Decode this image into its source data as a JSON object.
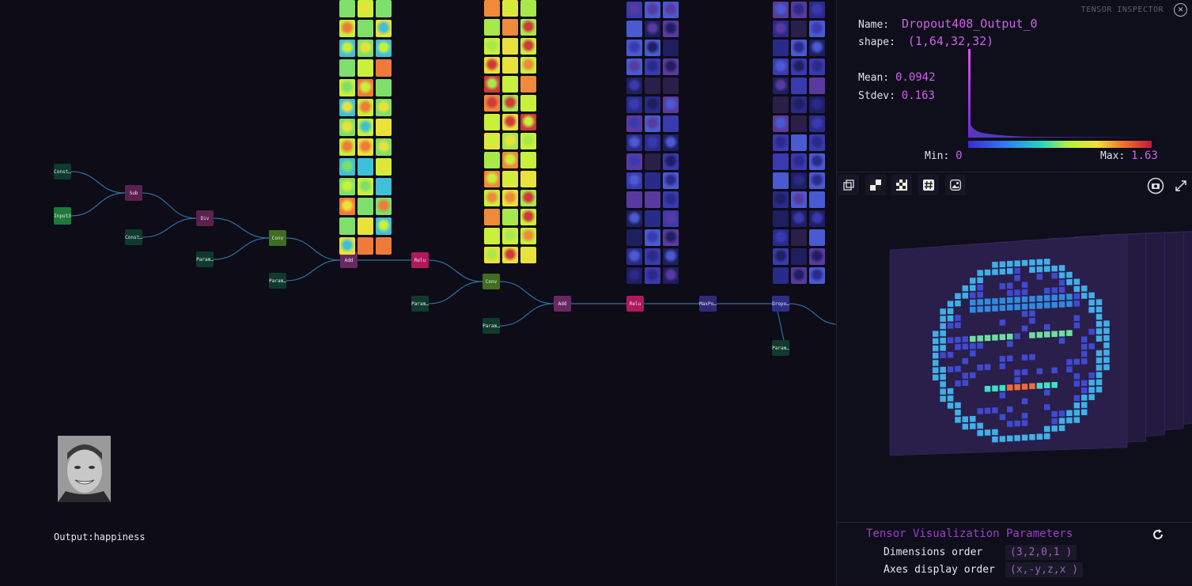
{
  "graph": {
    "nodes": [
      {
        "id": "c1",
        "label": "Constant",
        "kind": "const"
      },
      {
        "id": "in",
        "label": "Input3",
        "kind": "input"
      },
      {
        "id": "sub",
        "label": "Sub",
        "kind": "op"
      },
      {
        "id": "c2",
        "label": "Constant",
        "kind": "const"
      },
      {
        "id": "div",
        "label": "Div",
        "kind": "op"
      },
      {
        "id": "c3",
        "label": "Parameter",
        "kind": "const"
      },
      {
        "id": "conv1",
        "label": "Conv",
        "kind": "conv"
      },
      {
        "id": "c4",
        "label": "Parameter",
        "kind": "const"
      },
      {
        "id": "add1",
        "label": "Add",
        "kind": "add"
      },
      {
        "id": "relu1",
        "label": "Relu",
        "kind": "relu"
      },
      {
        "id": "c5",
        "label": "Parameter",
        "kind": "const"
      },
      {
        "id": "conv2",
        "label": "Conv",
        "kind": "conv"
      },
      {
        "id": "c6",
        "label": "Parameter",
        "kind": "const"
      },
      {
        "id": "add2",
        "label": "Add",
        "kind": "add"
      },
      {
        "id": "relu2",
        "label": "Relu",
        "kind": "relu"
      },
      {
        "id": "pool",
        "label": "MaxPool",
        "kind": "pool"
      },
      {
        "id": "drop",
        "label": "Dropout",
        "kind": "drop"
      },
      {
        "id": "c7",
        "label": "Parameter",
        "kind": "const"
      }
    ]
  },
  "output": {
    "label": "Output:happiness"
  },
  "inspector": {
    "title": "TENSOR INSPECTOR",
    "close_icon": "close-icon",
    "name_key": "Name:",
    "name_value": "Dropout408_Output_0",
    "shape_key": "shape:",
    "shape_value": "(1,64,32,32)",
    "mean_key": "Mean:",
    "mean_value": "0.0942",
    "stdev_key": "Stdev:",
    "stdev_value": "0.163",
    "min_key": "Min:",
    "min_value": "0",
    "max_key": "Max:",
    "max_value": "1.63",
    "tools": [
      "copy-icon",
      "checker-coarse-icon",
      "checker-fine-icon",
      "hash-icon",
      "image-icon"
    ],
    "view_tools": [
      "camera-icon",
      "expand-icon"
    ],
    "params": {
      "title": "Tensor Visualization Parameters",
      "dims_label": "Dimensions order",
      "dims_value": "(3,2,0,1 )",
      "axes_label": "Axes display order",
      "axes_value": "(x,-y,z,x )",
      "reset_icon": "reset-icon"
    }
  },
  "colors": {
    "accent": "#cc62e6",
    "relu": "#b0195d",
    "const": "#0f3b2c",
    "panel": "#0f0e1b"
  }
}
